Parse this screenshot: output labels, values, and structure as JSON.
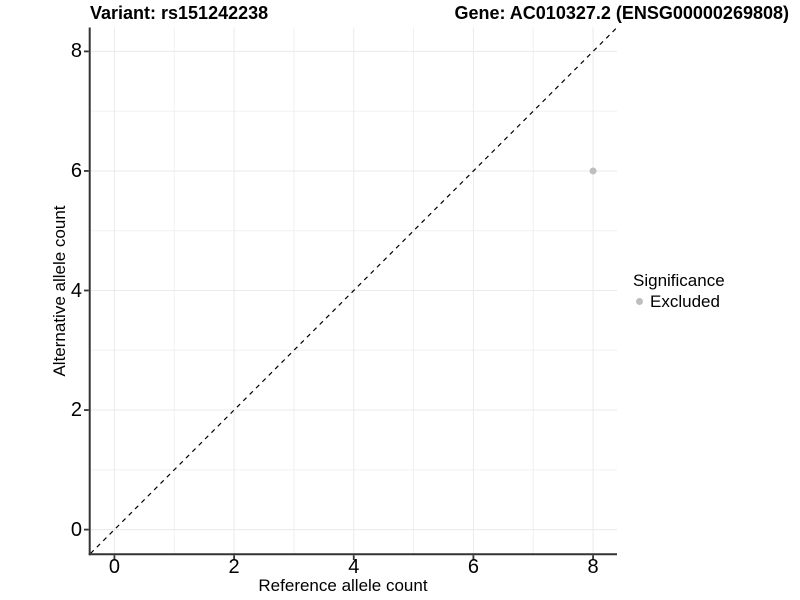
{
  "chart_data": {
    "type": "scatter",
    "title_left": "Variant: rs151242238",
    "title_right": "Gene: AC010327.2 (ENSG00000269808)",
    "xlabel": "Reference allele count",
    "ylabel": "Alternative allele count",
    "xlim": [
      -0.4,
      8.4
    ],
    "ylim": [
      -0.4,
      8.4
    ],
    "x_major_ticks": [
      0,
      2,
      4,
      6,
      8
    ],
    "y_major_ticks": [
      0,
      2,
      4,
      6,
      8
    ],
    "x_minor_gridlines": [
      1,
      3,
      5,
      7
    ],
    "y_minor_gridlines": [
      1,
      3,
      5,
      7
    ],
    "grid": "on",
    "points": [
      {
        "x": 8,
        "y": 6,
        "significance": "Excluded"
      }
    ],
    "identity_line": {
      "style": "dashed",
      "x1": -0.4,
      "y1": -0.4,
      "x2": 8.4,
      "y2": 8.4
    },
    "legend": {
      "title": "Significance",
      "position": "right",
      "items": [
        {
          "label": "Excluded",
          "color": "#bebebe"
        }
      ]
    },
    "colors": {
      "point": "#bebebe",
      "grid_major": "#eaeaea",
      "grid_minor": "#f0f0f0",
      "axis_line": "#333333",
      "tick_mark": "#333333",
      "identity_line": "#000000",
      "text": "#000000"
    }
  }
}
